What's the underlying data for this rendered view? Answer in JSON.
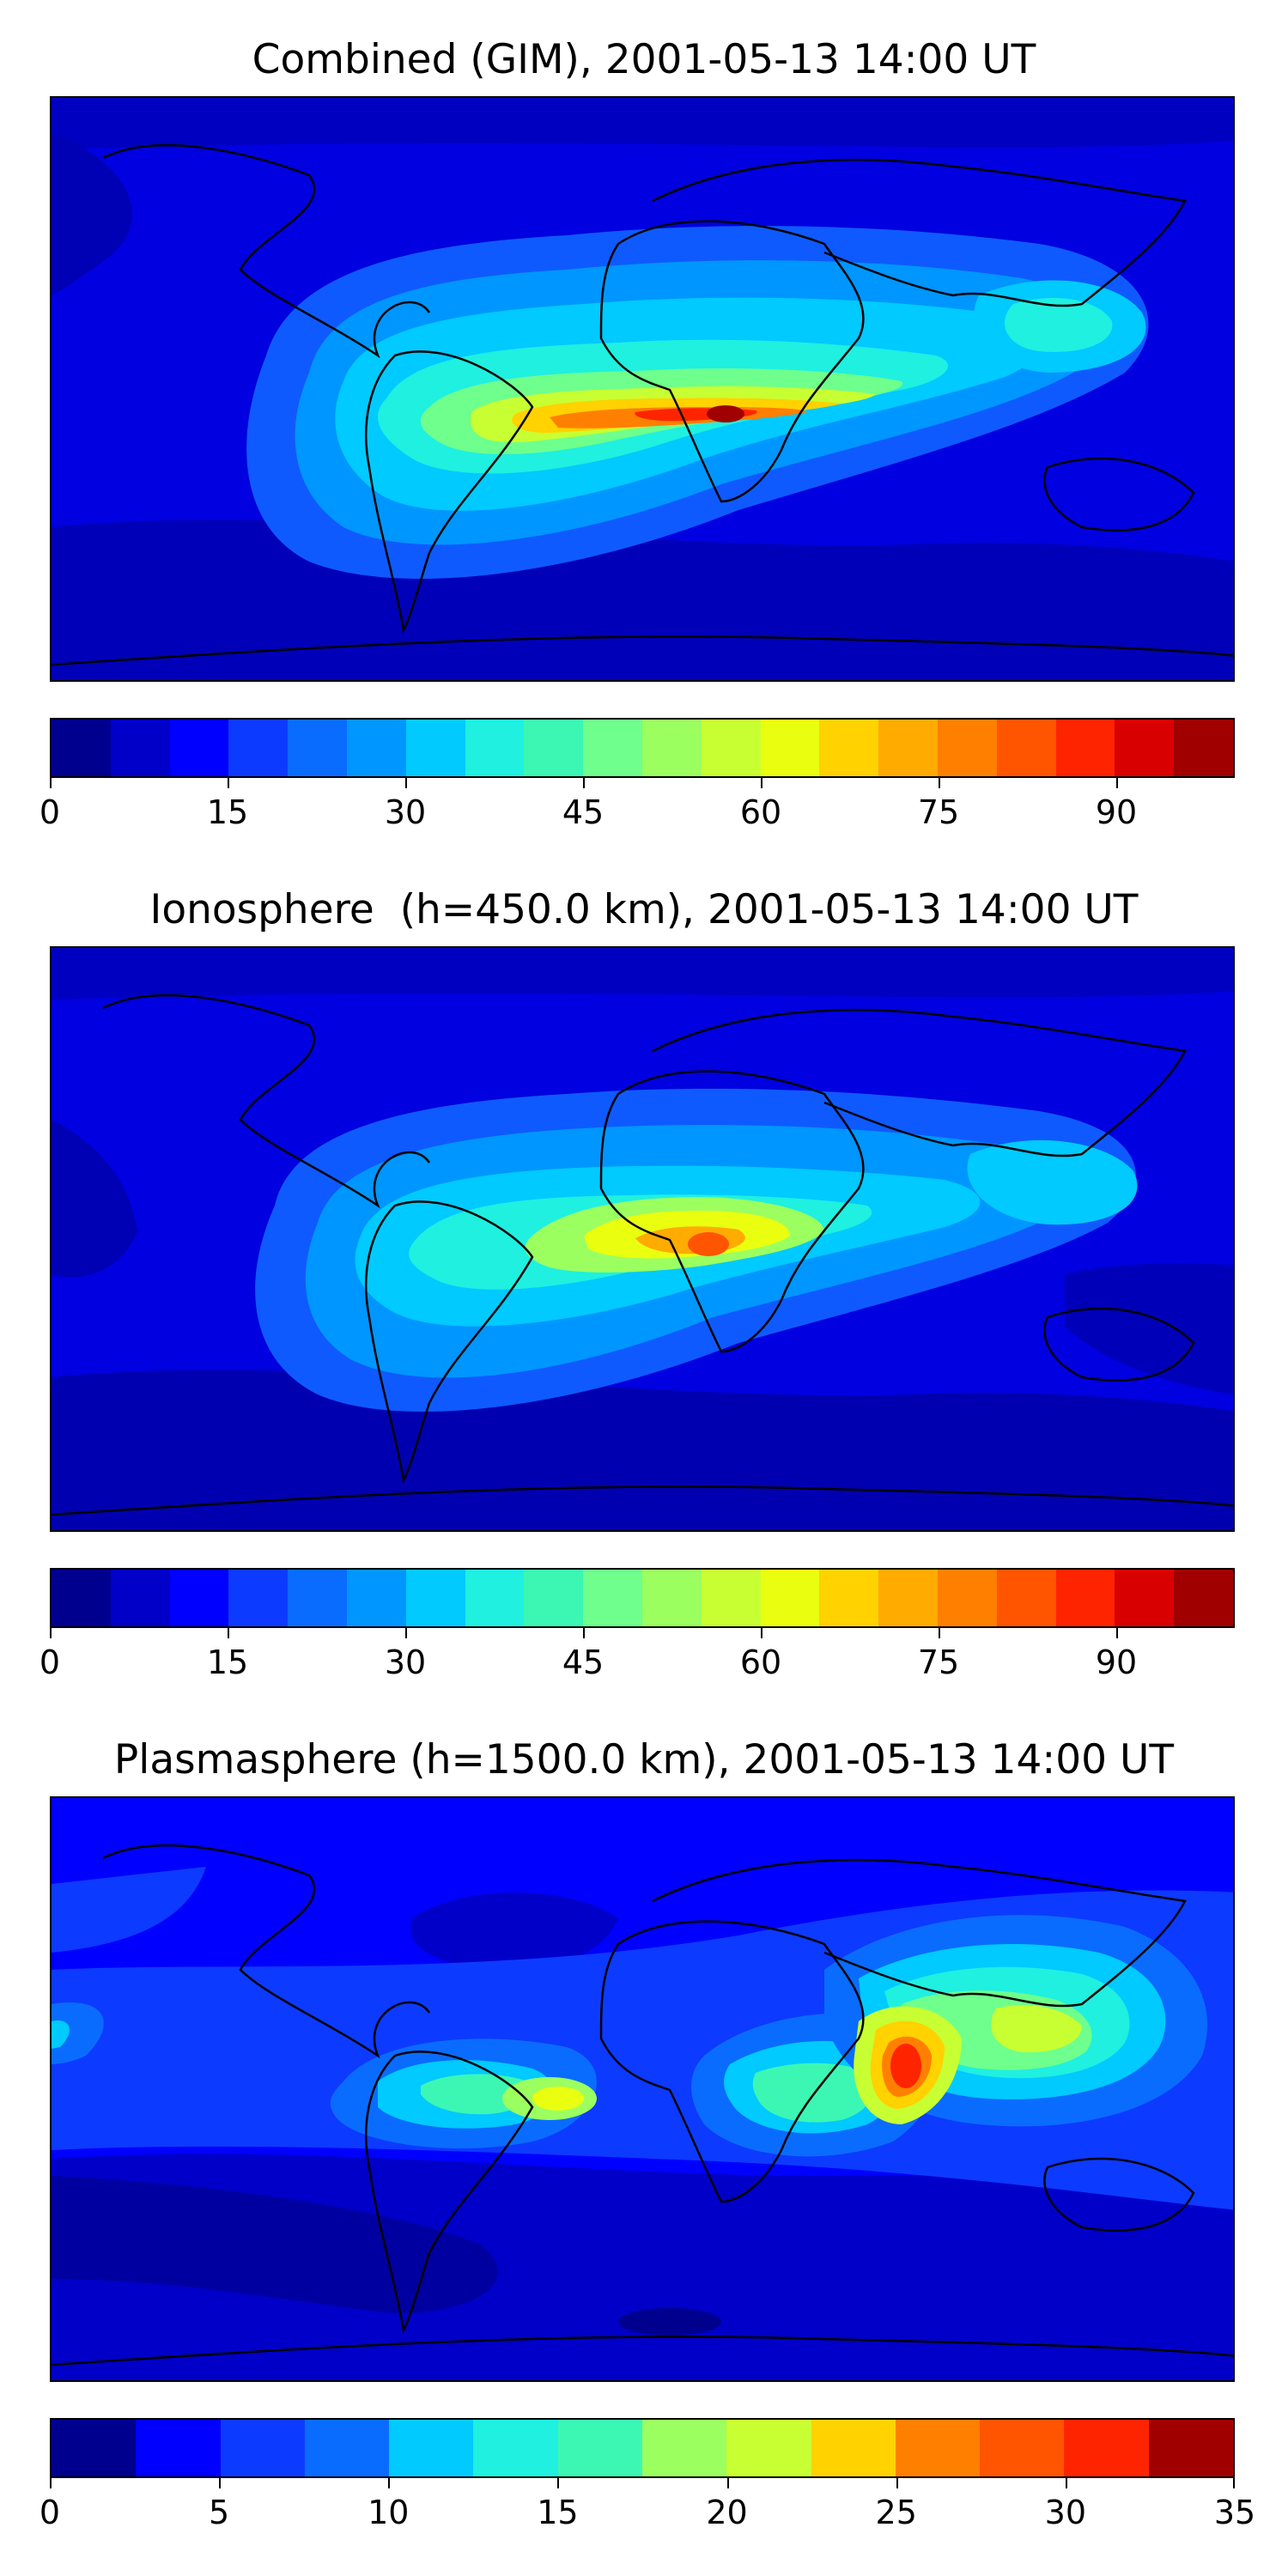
{
  "panels": [
    {
      "title": "Combined (GIM), 2001-05-13 14:00 UT",
      "colorbar": {
        "min": 0,
        "max": 100,
        "ticks": [
          "0",
          "15",
          "30",
          "45",
          "60",
          "75",
          "90"
        ],
        "tick_values": [
          0,
          15,
          30,
          45,
          60,
          75,
          90
        ],
        "colors": [
          "#00008f",
          "#0000c8",
          "#0000ff",
          "#0d3aff",
          "#0a6cff",
          "#0096ff",
          "#00caff",
          "#1ff0e0",
          "#3cf7b4",
          "#6eff8c",
          "#9bff60",
          "#c8ff32",
          "#eaff10",
          "#ffd200",
          "#ffab00",
          "#ff8000",
          "#ff5400",
          "#ff2400",
          "#d80000",
          "#a00000"
        ]
      },
      "features": {
        "background_level": "low",
        "peak_region": "equatorial Africa",
        "secondary_regions": [
          "tropical South America",
          "Indian Ocean / Southeast Asia"
        ]
      }
    },
    {
      "title": "Ionosphere  (h=450.0 km), 2001-05-13 14:00 UT",
      "colorbar": {
        "min": 0,
        "max": 100,
        "ticks": [
          "0",
          "15",
          "30",
          "45",
          "60",
          "75",
          "90"
        ],
        "tick_values": [
          0,
          15,
          30,
          45,
          60,
          75,
          90
        ],
        "colors": [
          "#00008f",
          "#0000c8",
          "#0000ff",
          "#0d3aff",
          "#0a6cff",
          "#0096ff",
          "#00caff",
          "#1ff0e0",
          "#3cf7b4",
          "#6eff8c",
          "#9bff60",
          "#c8ff32",
          "#eaff10",
          "#ffd200",
          "#ffab00",
          "#ff8000",
          "#ff5400",
          "#ff2400",
          "#d80000",
          "#a00000"
        ]
      },
      "features": {
        "background_level": "low",
        "peak_region": "central Africa",
        "secondary_regions": [
          "tropical South America",
          "Southeast Asia"
        ]
      }
    },
    {
      "title": "Plasmasphere (h=1500.0 km), 2001-05-13 14:00 UT",
      "colorbar": {
        "min": 0,
        "max": 35,
        "ticks": [
          "0",
          "5",
          "10",
          "15",
          "20",
          "25",
          "30",
          "35"
        ],
        "tick_values": [
          0,
          5,
          10,
          15,
          20,
          25,
          30,
          35
        ],
        "colors": [
          "#00008f",
          "#0000ff",
          "#0d3aff",
          "#0a6cff",
          "#00caff",
          "#1ff0e0",
          "#3cf7b4",
          "#9bff60",
          "#c8ff32",
          "#ffd200",
          "#ff8000",
          "#ff5400",
          "#ff2400",
          "#a00000"
        ]
      },
      "features": {
        "background_level": "low",
        "peak_region": "India / Arabian Sea",
        "secondary_regions": [
          "Southern Brazil",
          "East Africa",
          "Southeast Asia / China"
        ]
      }
    }
  ]
}
